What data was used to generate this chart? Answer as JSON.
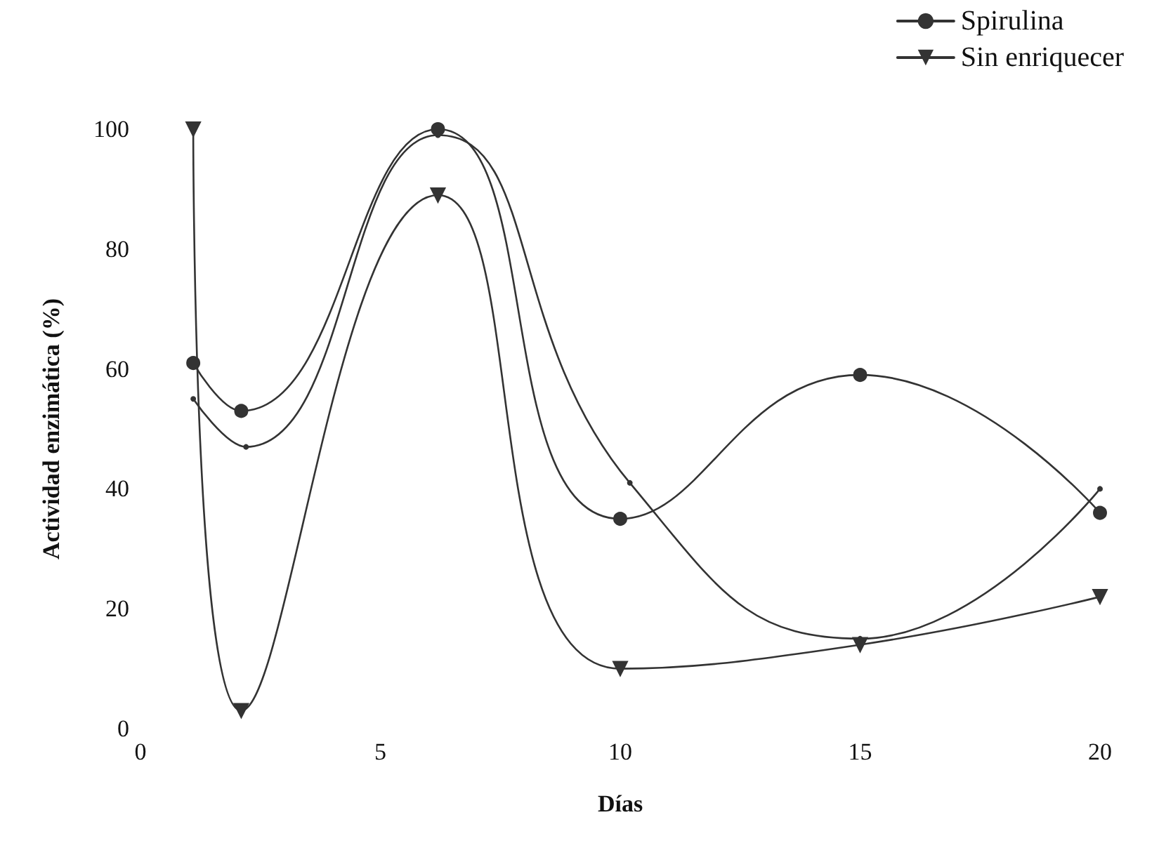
{
  "chart_data": {
    "type": "line",
    "xlabel": "Días",
    "ylabel": "Actividad enzimática (%)",
    "xlim": [
      0,
      20
    ],
    "xticks": [
      0,
      5,
      10,
      15,
      20
    ],
    "ylim": [
      0,
      100
    ],
    "yticks": [
      0,
      20,
      40,
      60,
      80,
      100
    ],
    "grid": false,
    "legend": "top right",
    "line_style": "solid",
    "series": [
      {
        "name": "Spirulina",
        "color": "#333333",
        "marker": "circle",
        "x": [
          1.1,
          2.1,
          6.2,
          10,
          15,
          20
        ],
        "values": [
          61,
          53,
          100,
          35,
          59,
          36
        ]
      },
      {
        "color": "#333333",
        "marker": "none",
        "x": [
          1.1,
          2.2,
          6.2,
          10.2,
          15,
          20
        ],
        "values": [
          55,
          47,
          99,
          41,
          15,
          40
        ]
      },
      {
        "name": "Sin enriquecer",
        "color": "#333333",
        "marker": "triangle",
        "x": [
          1.1,
          2.1,
          6.2,
          10,
          15,
          20
        ],
        "values": [
          100,
          3,
          89,
          10,
          14,
          22
        ]
      }
    ]
  }
}
